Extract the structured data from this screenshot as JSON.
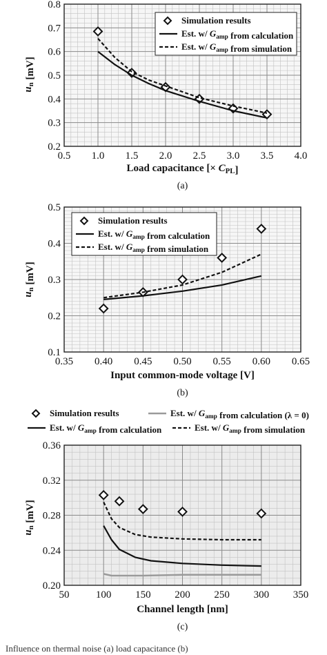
{
  "chart_data": [
    {
      "type": "line",
      "panel_label": "(a)",
      "xlabel": "Load capacitance [× C_PL]",
      "ylabel": "u_n [mV]",
      "xlim": [
        0.5,
        4.0
      ],
      "ylim": [
        0.2,
        0.8
      ],
      "xticks": [
        "0.5",
        "1.0",
        "1.5",
        "2.0",
        "2.5",
        "3.0",
        "3.5",
        "4.0"
      ],
      "yticks": [
        "0.2",
        "0.3",
        "0.4",
        "0.5",
        "0.6",
        "0.7",
        "0.8"
      ],
      "grid": true,
      "legend_position": "top-right",
      "series": [
        {
          "name": "Simulation results",
          "style": "diamond-markers",
          "x": [
            1.0,
            1.5,
            2.0,
            2.5,
            3.0,
            3.5
          ],
          "y": [
            0.685,
            0.51,
            0.45,
            0.4,
            0.36,
            0.335
          ]
        },
        {
          "name": "Est. w/ G_amp from calculation",
          "style": "solid",
          "x": [
            1.0,
            1.25,
            1.5,
            1.75,
            2.0,
            2.5,
            3.0,
            3.5
          ],
          "y": [
            0.6,
            0.545,
            0.5,
            0.465,
            0.435,
            0.39,
            0.35,
            0.32
          ]
        },
        {
          "name": "Est. w/ G_amp from simulation",
          "style": "dashed",
          "x": [
            1.0,
            1.25,
            1.5,
            1.75,
            2.0,
            2.5,
            3.0,
            3.5
          ],
          "y": [
            0.655,
            0.575,
            0.515,
            0.48,
            0.455,
            0.405,
            0.37,
            0.34
          ]
        }
      ]
    },
    {
      "type": "line",
      "panel_label": "(b)",
      "xlabel": "Input common-mode voltage [V]",
      "ylabel": "u_n [mV]",
      "xlim": [
        0.35,
        0.65
      ],
      "ylim": [
        0.1,
        0.5
      ],
      "xticks": [
        "0.35",
        "0.40",
        "0.45",
        "0.50",
        "0.55",
        "0.60",
        "0.65"
      ],
      "yticks": [
        "0.1",
        "0.2",
        "0.3",
        "0.4",
        "0.5"
      ],
      "grid": true,
      "legend_position": "top-left",
      "series": [
        {
          "name": "Simulation results",
          "style": "diamond-markers",
          "x": [
            0.4,
            0.45,
            0.5,
            0.55,
            0.6
          ],
          "y": [
            0.22,
            0.265,
            0.3,
            0.36,
            0.44
          ]
        },
        {
          "name": "Est. w/ G_amp from calculation",
          "style": "solid",
          "x": [
            0.4,
            0.45,
            0.5,
            0.55,
            0.6
          ],
          "y": [
            0.245,
            0.255,
            0.268,
            0.285,
            0.31
          ]
        },
        {
          "name": "Est. w/ G_amp from simulation",
          "style": "dashed",
          "x": [
            0.4,
            0.45,
            0.5,
            0.55,
            0.6
          ],
          "y": [
            0.25,
            0.265,
            0.285,
            0.32,
            0.37
          ]
        }
      ]
    },
    {
      "type": "line",
      "panel_label": "(c)",
      "xlabel": "Channel length [nm]",
      "ylabel": "u_n [mV]",
      "xlim": [
        50,
        350
      ],
      "ylim": [
        0.2,
        0.36
      ],
      "xticks": [
        "50",
        "100",
        "150",
        "200",
        "250",
        "300",
        "350"
      ],
      "yticks": [
        "0.20",
        "0.24",
        "0.28",
        "0.32",
        "0.36"
      ],
      "grid": true,
      "legend_position": "top-outside",
      "series": [
        {
          "name": "Simulation results",
          "style": "diamond-markers",
          "x": [
            100,
            120,
            150,
            200,
            300
          ],
          "y": [
            0.303,
            0.296,
            0.287,
            0.284,
            0.282
          ]
        },
        {
          "name": "Est. w/ G_amp from calculation (λ = 0)",
          "style": "solid-gray",
          "x": [
            100,
            110,
            150,
            200,
            250,
            300
          ],
          "y": [
            0.213,
            0.211,
            0.211,
            0.212,
            0.212,
            0.212
          ]
        },
        {
          "name": "Est. w/ G_amp from calculation",
          "style": "solid",
          "x": [
            100,
            110,
            120,
            140,
            160,
            200,
            250,
            300
          ],
          "y": [
            0.268,
            0.252,
            0.241,
            0.232,
            0.228,
            0.225,
            0.223,
            0.222
          ]
        },
        {
          "name": "Est. w/ G_amp from simulation",
          "style": "dashed",
          "x": [
            100,
            110,
            120,
            140,
            160,
            200,
            250,
            300
          ],
          "y": [
            0.295,
            0.276,
            0.266,
            0.258,
            0.255,
            0.253,
            0.252,
            0.252
          ]
        }
      ]
    }
  ],
  "footer_text": "Influence on thermal noise (a) load capacitance (b)"
}
